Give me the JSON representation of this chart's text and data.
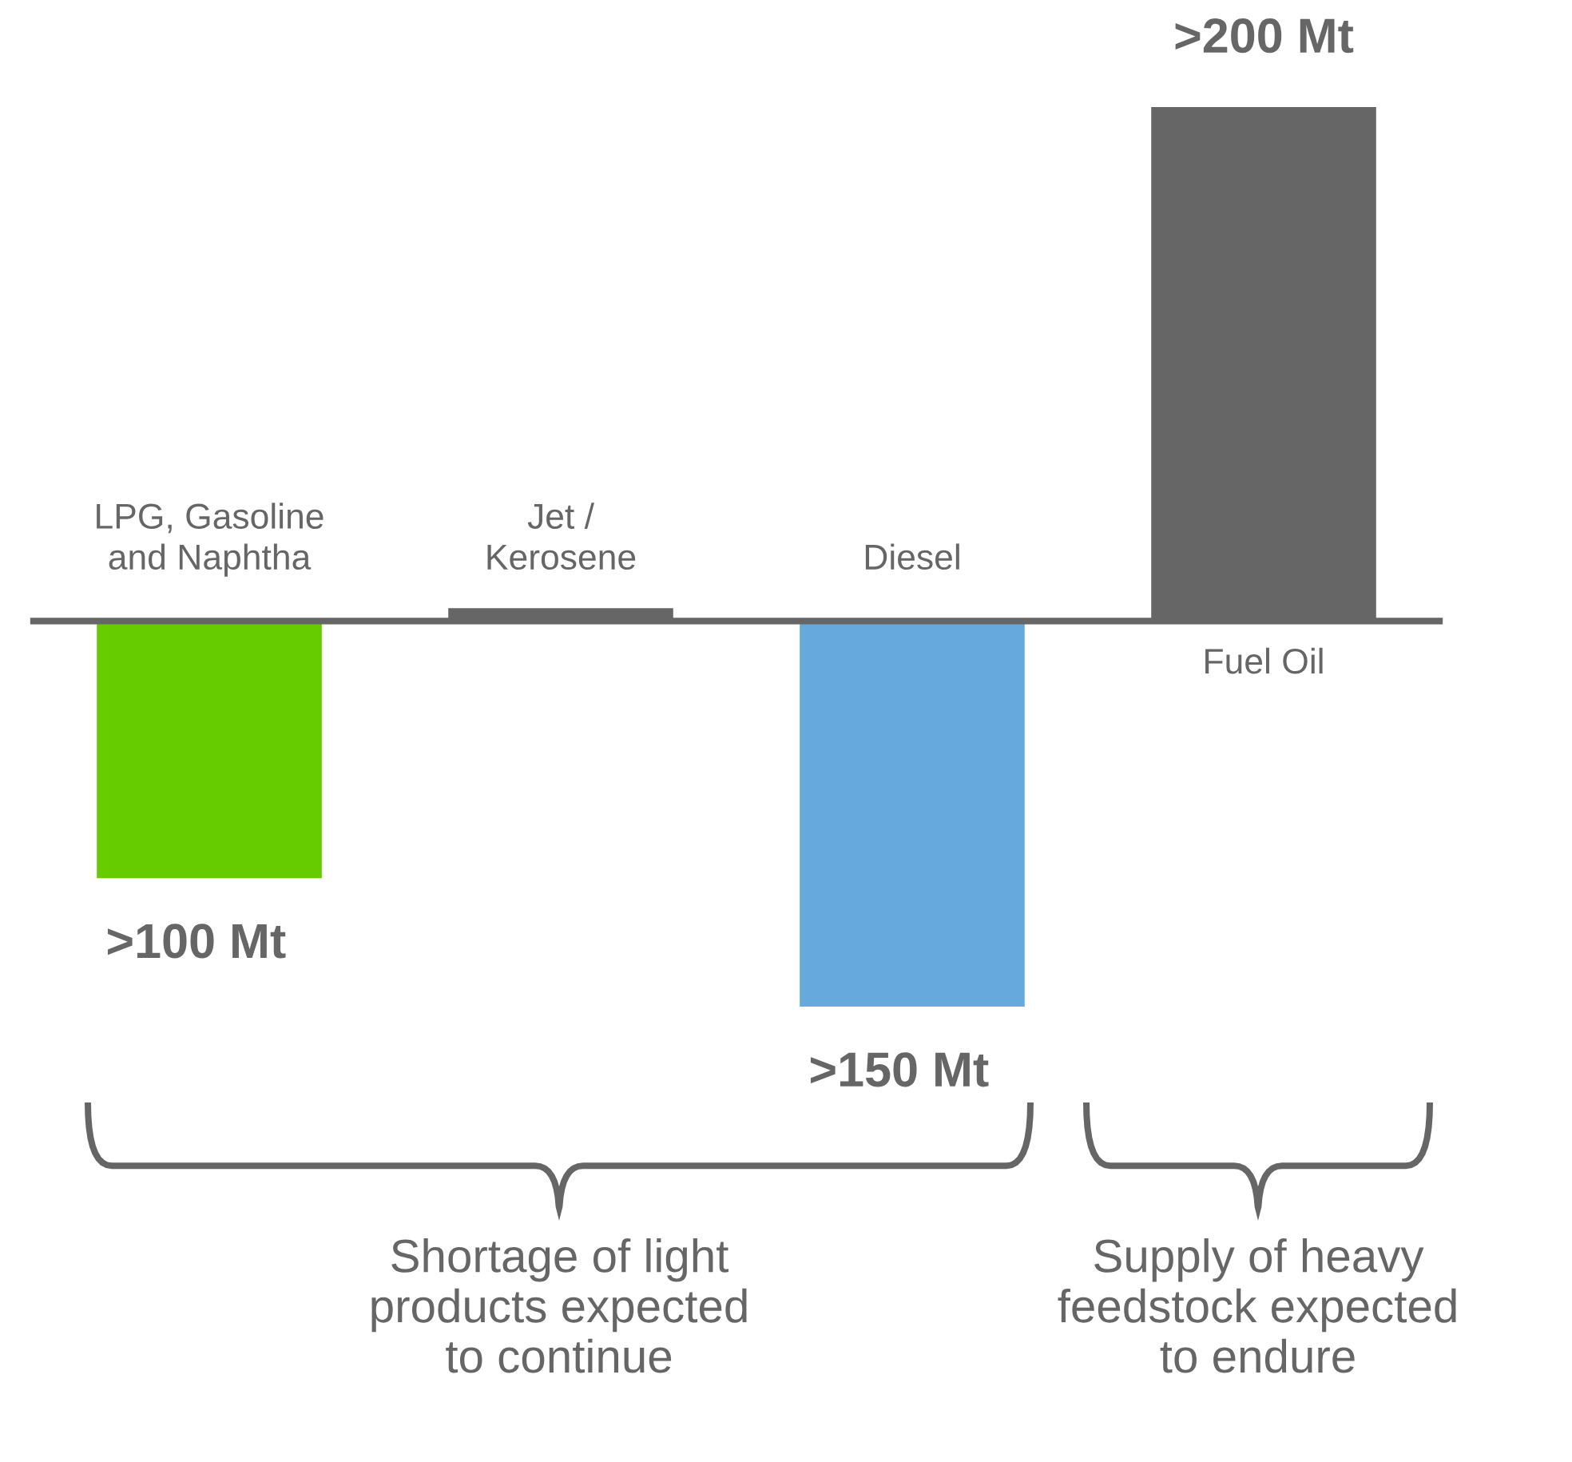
{
  "chart_data": {
    "type": "bar",
    "categories": [
      "LPG, Gasoline\nand Naphtha",
      "Jet /\nKerosene",
      "Diesel",
      "Fuel Oil"
    ],
    "values": [
      -100,
      5,
      -150,
      200
    ],
    "colors": [
      "#66cc00",
      "#666666",
      "#66aadd",
      "#666666"
    ],
    "value_labels": [
      ">100 Mt",
      null,
      ">150 Mt",
      ">200 Mt"
    ],
    "annotations": [
      "Shortage of light\nproducts expected\nto continue",
      "Supply of heavy\nfeedstock expected\nto endure"
    ]
  }
}
